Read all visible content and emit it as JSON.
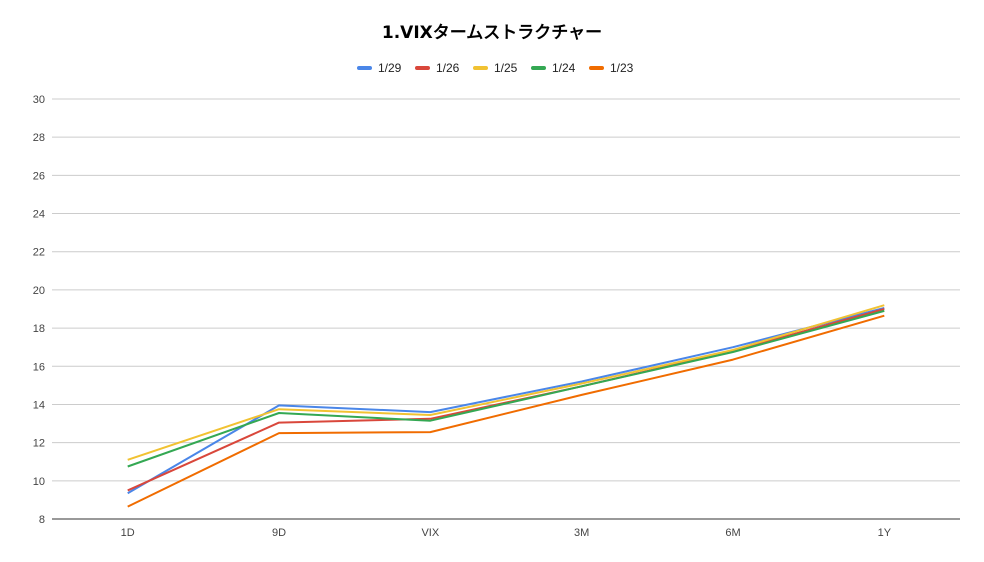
{
  "chart_data": {
    "type": "line",
    "title": "1.VIXタームストラクチャー",
    "xlabel": "",
    "ylabel": "",
    "categories": [
      "1D",
      "9D",
      "VIX",
      "3M",
      "6M",
      "1Y"
    ],
    "ylim": [
      8,
      30
    ],
    "yticks": [
      8,
      10,
      12,
      14,
      16,
      18,
      20,
      22,
      24,
      26,
      28,
      30
    ],
    "grid": true,
    "legend_position": "top-center",
    "series": [
      {
        "name": "1/29",
        "color": "#4a86e8",
        "values": [
          9.35,
          13.95,
          13.6,
          15.2,
          17.0,
          19.05
        ]
      },
      {
        "name": "1/26",
        "color": "#d9473b",
        "values": [
          9.5,
          13.05,
          13.25,
          14.95,
          16.8,
          19.0
        ]
      },
      {
        "name": "1/25",
        "color": "#f1c232",
        "values": [
          11.1,
          13.75,
          13.45,
          15.1,
          16.85,
          19.2
        ]
      },
      {
        "name": "1/24",
        "color": "#34a853",
        "values": [
          10.75,
          13.55,
          13.15,
          14.95,
          16.75,
          18.9
        ]
      },
      {
        "name": "1/23",
        "color": "#f06c00",
        "values": [
          8.65,
          12.5,
          12.55,
          14.5,
          16.35,
          18.65
        ]
      }
    ]
  }
}
